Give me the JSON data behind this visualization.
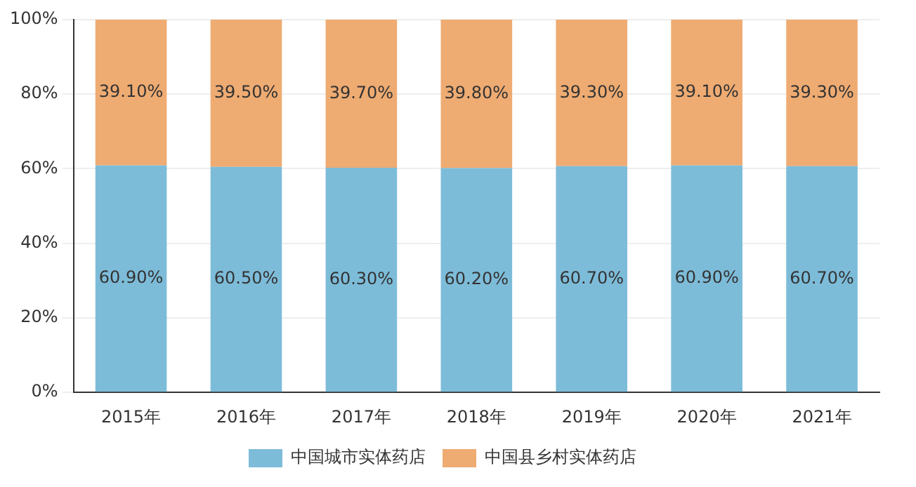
{
  "chart_data": {
    "type": "bar",
    "stacked": true,
    "categories": [
      "2015年",
      "2016年",
      "2017年",
      "2018年",
      "2019年",
      "2020年",
      "2021年"
    ],
    "series": [
      {
        "name": "中国城市实体药店",
        "color": "#7dbcd9",
        "values": [
          60.9,
          60.5,
          60.3,
          60.2,
          60.7,
          60.9,
          60.7
        ],
        "value_labels": [
          "60.90%",
          "60.50%",
          "60.30%",
          "60.20%",
          "60.70%",
          "60.90%",
          "60.70%"
        ]
      },
      {
        "name": "中国县乡村实体药店",
        "color": "#eeab72",
        "values": [
          39.1,
          39.5,
          39.7,
          39.8,
          39.3,
          39.1,
          39.3
        ],
        "value_labels": [
          "39.10%",
          "39.50%",
          "39.70%",
          "39.80%",
          "39.30%",
          "39.10%",
          "39.30%"
        ]
      }
    ],
    "ylim": [
      0,
      100
    ],
    "yticks": [
      {
        "value": 0,
        "label": "0%"
      },
      {
        "value": 20,
        "label": "20%"
      },
      {
        "value": 40,
        "label": "40%"
      },
      {
        "value": 60,
        "label": "60%"
      },
      {
        "value": 80,
        "label": "80%"
      },
      {
        "value": 100,
        "label": "100%"
      }
    ],
    "grid": "y",
    "legend": "bottom"
  }
}
